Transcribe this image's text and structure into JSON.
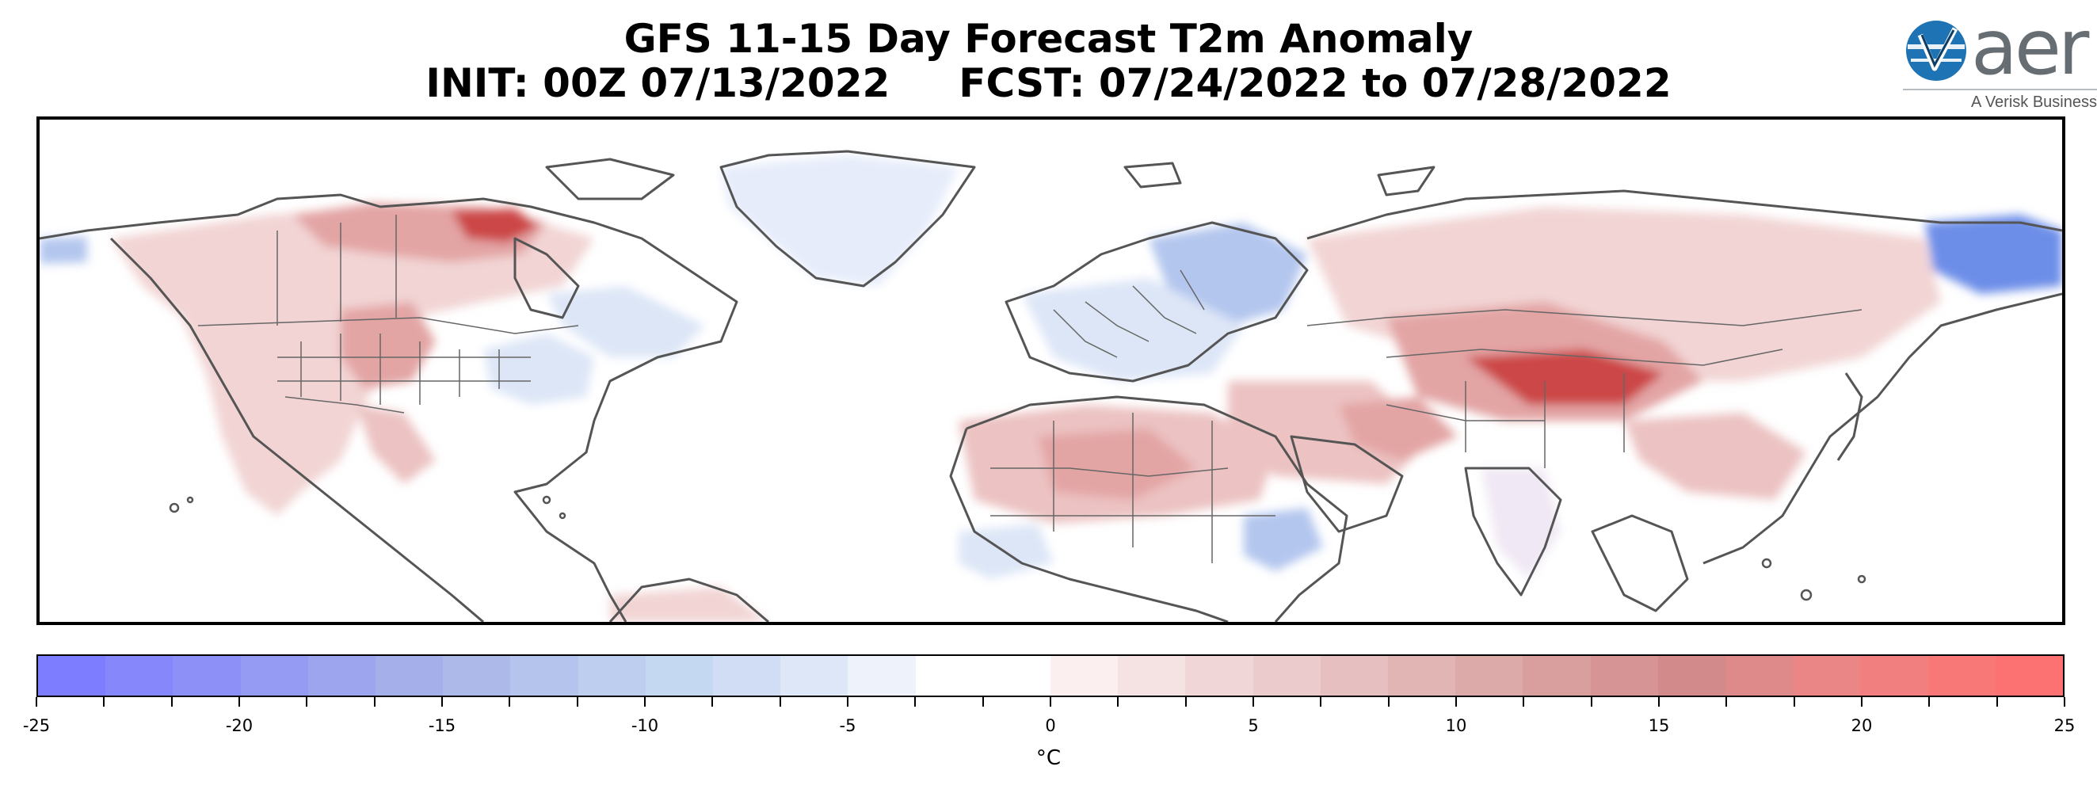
{
  "title": {
    "line1": "GFS 11-15 Day Forecast T2m Anomaly",
    "line2": "INIT: 00Z 07/13/2022     FCST: 07/24/2022 to 07/28/2022"
  },
  "logo": {
    "text": "aer",
    "tagline": "A Verisk Business",
    "icon": "aer-globe-logo-icon",
    "color_primary": "#1e73b4",
    "color_text": "#666e73"
  },
  "map": {
    "region": "Northern Hemisphere (North America, Europe, Africa, Asia)",
    "colors": {
      "ocean": "#ffffff",
      "coastline": "#555555",
      "warm_light": "#f2d4d4",
      "warm_mid": "#e3a4a4",
      "warm_strong": "#cc4747",
      "cool_light": "#dde6f7",
      "cool_mid": "#b3c6ee",
      "cool_strong": "#6d8ee8"
    }
  },
  "colorbar": {
    "unit": "°C",
    "min": -25,
    "max": 25,
    "tick_labels": [
      "-25",
      "-20",
      "-15",
      "-10",
      "-5",
      "0",
      "5",
      "10",
      "15",
      "20",
      "25"
    ],
    "colors": [
      "#7d7dff",
      "#8587fb",
      "#8d91f7",
      "#959bf2",
      "#9da5ee",
      "#a5afea",
      "#adbae9",
      "#b5c4ec",
      "#bdceef",
      "#c5d8f2",
      "#d0ddf5",
      "#dee7f7",
      "#eef2fb",
      "#ffffff",
      "#ffffff",
      "#fbefef",
      "#f5e2e2",
      "#f0d6d6",
      "#ebcbcb",
      "#e6c0c0",
      "#e2b5b5",
      "#ddaaaa",
      "#d99f9f",
      "#d69494",
      "#d38a8a",
      "#df8a8a",
      "#ea8686",
      "#f27f7f",
      "#f87878",
      "#fc7272"
    ]
  }
}
